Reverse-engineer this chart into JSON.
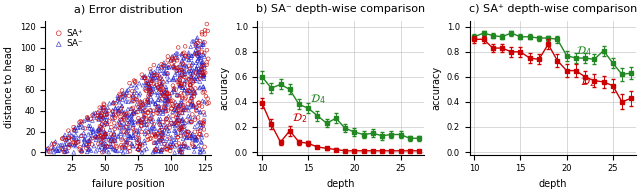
{
  "title_a": "a) Error distribution",
  "title_b": "b) SA⁻ depth-wise comparison",
  "title_c": "c) SA⁺ depth-wise comparison",
  "xlabel_a": "failure position",
  "ylabel_a": "distance to head",
  "xlabel_bc": "depth",
  "ylabel_bc": "accuracy",
  "scatter_xlim": [
    5,
    130
  ],
  "scatter_ylim": [
    -2,
    126
  ],
  "scatter_xticks": [
    25,
    50,
    75,
    100,
    125
  ],
  "scatter_yticks": [
    0,
    20,
    40,
    60,
    80,
    100,
    120
  ],
  "line_xlim": [
    9.5,
    27.5
  ],
  "line_ylim": [
    -0.02,
    1.05
  ],
  "line_xticks": [
    10,
    15,
    20,
    25
  ],
  "line_yticks": [
    0,
    0.2,
    0.4,
    0.6,
    0.8,
    1.0
  ],
  "sa_plus_color": "#cc0000",
  "sa_minus_color": "#2222cc",
  "d2_color": "#cc0000",
  "d4_color": "#228822",
  "legend_sa_plus": "SA⁺",
  "legend_sa_minus": "SA⁻",
  "b_depth": [
    10,
    11,
    12,
    13,
    14,
    15,
    16,
    17,
    18,
    19,
    20,
    21,
    22,
    23,
    24,
    25,
    26,
    27
  ],
  "b_d2_mean": [
    0.39,
    0.22,
    0.08,
    0.17,
    0.08,
    0.07,
    0.04,
    0.03,
    0.02,
    0.01,
    0.01,
    0.01,
    0.01,
    0.01,
    0.01,
    0.01,
    0.01,
    0.01
  ],
  "b_d2_err": [
    0.04,
    0.04,
    0.02,
    0.04,
    0.02,
    0.02,
    0.01,
    0.01,
    0.01,
    0.01,
    0.01,
    0.01,
    0.01,
    0.01,
    0.01,
    0.01,
    0.01,
    0.01
  ],
  "b_d4_mean": [
    0.6,
    0.51,
    0.54,
    0.5,
    0.38,
    0.35,
    0.29,
    0.23,
    0.27,
    0.19,
    0.16,
    0.14,
    0.15,
    0.13,
    0.14,
    0.14,
    0.11,
    0.11
  ],
  "b_d4_err": [
    0.05,
    0.04,
    0.04,
    0.04,
    0.04,
    0.04,
    0.04,
    0.03,
    0.04,
    0.03,
    0.03,
    0.03,
    0.03,
    0.03,
    0.03,
    0.03,
    0.02,
    0.02
  ],
  "c_depth": [
    10,
    11,
    12,
    13,
    14,
    15,
    16,
    17,
    18,
    19,
    20,
    21,
    22,
    23,
    24,
    25,
    26,
    27
  ],
  "c_d2_mean": [
    0.9,
    0.9,
    0.83,
    0.83,
    0.8,
    0.8,
    0.75,
    0.74,
    0.86,
    0.73,
    0.65,
    0.65,
    0.6,
    0.57,
    0.56,
    0.53,
    0.4,
    0.43
  ],
  "c_d2_err": [
    0.03,
    0.03,
    0.03,
    0.03,
    0.04,
    0.04,
    0.04,
    0.04,
    0.04,
    0.05,
    0.05,
    0.05,
    0.05,
    0.05,
    0.05,
    0.05,
    0.06,
    0.06
  ],
  "c_d4_mean": [
    0.92,
    0.95,
    0.93,
    0.92,
    0.95,
    0.92,
    0.92,
    0.91,
    0.91,
    0.9,
    0.77,
    0.75,
    0.75,
    0.74,
    0.81,
    0.71,
    0.62,
    0.63
  ],
  "c_d4_err": [
    0.02,
    0.02,
    0.02,
    0.02,
    0.02,
    0.02,
    0.02,
    0.02,
    0.02,
    0.03,
    0.04,
    0.04,
    0.04,
    0.04,
    0.04,
    0.04,
    0.05,
    0.05
  ]
}
